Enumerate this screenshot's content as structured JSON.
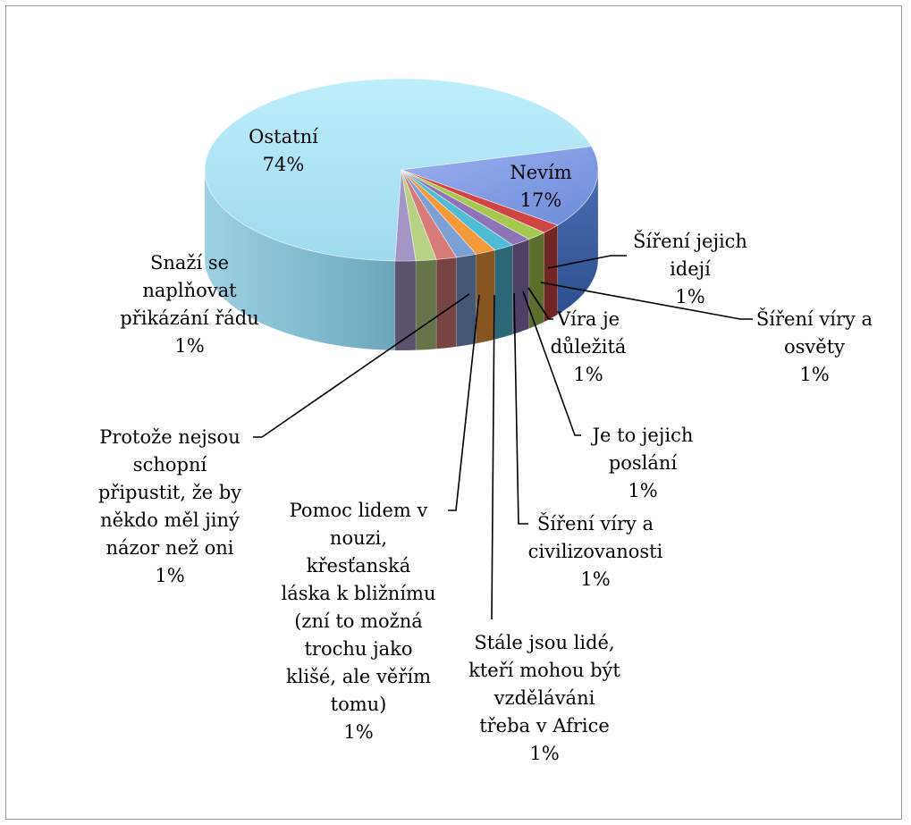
{
  "chart_data": {
    "type": "pie",
    "title": "",
    "legend": "none",
    "slices": [
      {
        "label": [
          "Ostatní",
          "74%"
        ],
        "value": 74,
        "color": "#a6e0f1"
      },
      {
        "label": [
          "Nevím",
          "17%"
        ],
        "value": 17,
        "color": "#8fa6e8"
      },
      {
        "label": [
          "Šíření jejich",
          "idejí",
          "1%"
        ],
        "value": 1,
        "color": "#d04444"
      },
      {
        "label": [
          "Šíření víry a",
          "osvěty",
          "1%"
        ],
        "value": 1,
        "color": "#a6c84e"
      },
      {
        "label": [
          "Víra je",
          "důležitá",
          "1%"
        ],
        "value": 1,
        "color": "#8e73b6"
      },
      {
        "label": [
          "Je to jejich",
          "poslání",
          "1%"
        ],
        "value": 1,
        "color": "#4fbcd6"
      },
      {
        "label": [
          "Šíření víry a",
          "civilizovanosti",
          "1%"
        ],
        "value": 1,
        "color": "#f59a3a"
      },
      {
        "label": [
          "Stále jsou lidé,",
          "kteří mohou být",
          "vzděláváni",
          "třeba v Africe",
          "1%"
        ],
        "value": 1,
        "color": "#7c9fd4"
      },
      {
        "label": [
          "Pomoc lidem v",
          "nouzi,",
          "křesťanská",
          "láska k bližnímu",
          "(zní to možná",
          "trochu jako",
          "klišé, ale věřím",
          "tomu)",
          "1%"
        ],
        "value": 1,
        "color": "#d77b79"
      },
      {
        "label": [
          "Protože nejsou",
          "schopní",
          "připustit, že by",
          "někdo měl jiný",
          "názor než oni",
          "1%"
        ],
        "value": 1,
        "color": "#b8d284"
      },
      {
        "label": [
          "Snaží se",
          "naplňovat",
          "přikázání řádu",
          "1%"
        ],
        "value": 1,
        "color": "#a595c6"
      }
    ]
  }
}
